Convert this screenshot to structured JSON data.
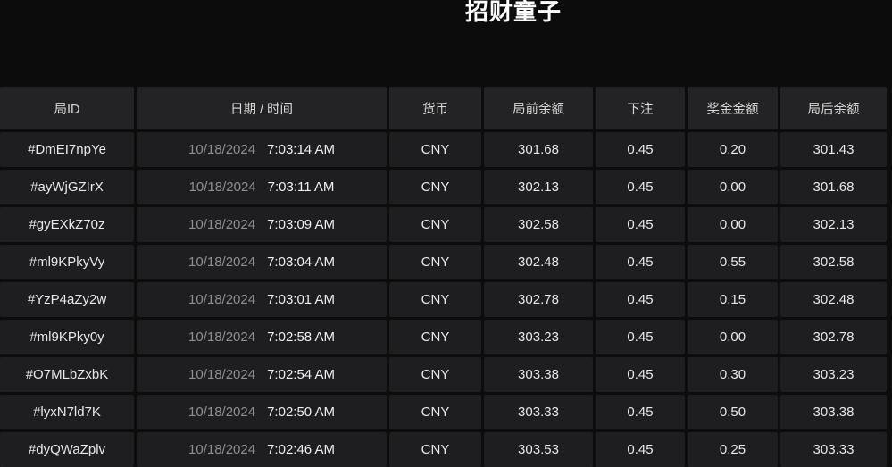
{
  "title": "招财童子",
  "colors": {
    "page_background": "#0c0c0c",
    "cell_background": "#1e1e20",
    "header_background": "#232325",
    "text_primary": "#e8e8e8",
    "text_muted": "#8f8f8f"
  },
  "table": {
    "headers": [
      "局ID",
      "日期 / 时间",
      "货币",
      "局前余额",
      "下注",
      "奖金金额",
      "局后余额"
    ],
    "rows": [
      {
        "id": "#DmEI7npYe",
        "date": "10/18/2024",
        "time": "7:03:14 AM",
        "currency": "CNY",
        "balance_before": "301.68",
        "bet": "0.45",
        "prize": "0.20",
        "balance_after": "301.43"
      },
      {
        "id": "#ayWjGZIrX",
        "date": "10/18/2024",
        "time": "7:03:11 AM",
        "currency": "CNY",
        "balance_before": "302.13",
        "bet": "0.45",
        "prize": "0.00",
        "balance_after": "301.68"
      },
      {
        "id": "#gyEXkZ70z",
        "date": "10/18/2024",
        "time": "7:03:09 AM",
        "currency": "CNY",
        "balance_before": "302.58",
        "bet": "0.45",
        "prize": "0.00",
        "balance_after": "302.13"
      },
      {
        "id": "#ml9KPkyVy",
        "date": "10/18/2024",
        "time": "7:03:04 AM",
        "currency": "CNY",
        "balance_before": "302.48",
        "bet": "0.45",
        "prize": "0.55",
        "balance_after": "302.58"
      },
      {
        "id": "#YzP4aZy2w",
        "date": "10/18/2024",
        "time": "7:03:01 AM",
        "currency": "CNY",
        "balance_before": "302.78",
        "bet": "0.45",
        "prize": "0.15",
        "balance_after": "302.48"
      },
      {
        "id": "#ml9KPky0y",
        "date": "10/18/2024",
        "time": "7:02:58 AM",
        "currency": "CNY",
        "balance_before": "303.23",
        "bet": "0.45",
        "prize": "0.00",
        "balance_after": "302.78"
      },
      {
        "id": "#O7MLbZxbK",
        "date": "10/18/2024",
        "time": "7:02:54 AM",
        "currency": "CNY",
        "balance_before": "303.38",
        "bet": "0.45",
        "prize": "0.30",
        "balance_after": "303.23"
      },
      {
        "id": "#lyxN7ld7K",
        "date": "10/18/2024",
        "time": "7:02:50 AM",
        "currency": "CNY",
        "balance_before": "303.33",
        "bet": "0.45",
        "prize": "0.50",
        "balance_after": "303.38"
      },
      {
        "id": "#dyQWaZplv",
        "date": "10/18/2024",
        "time": "7:02:46 AM",
        "currency": "CNY",
        "balance_before": "303.53",
        "bet": "0.45",
        "prize": "0.25",
        "balance_after": "303.33"
      }
    ]
  }
}
